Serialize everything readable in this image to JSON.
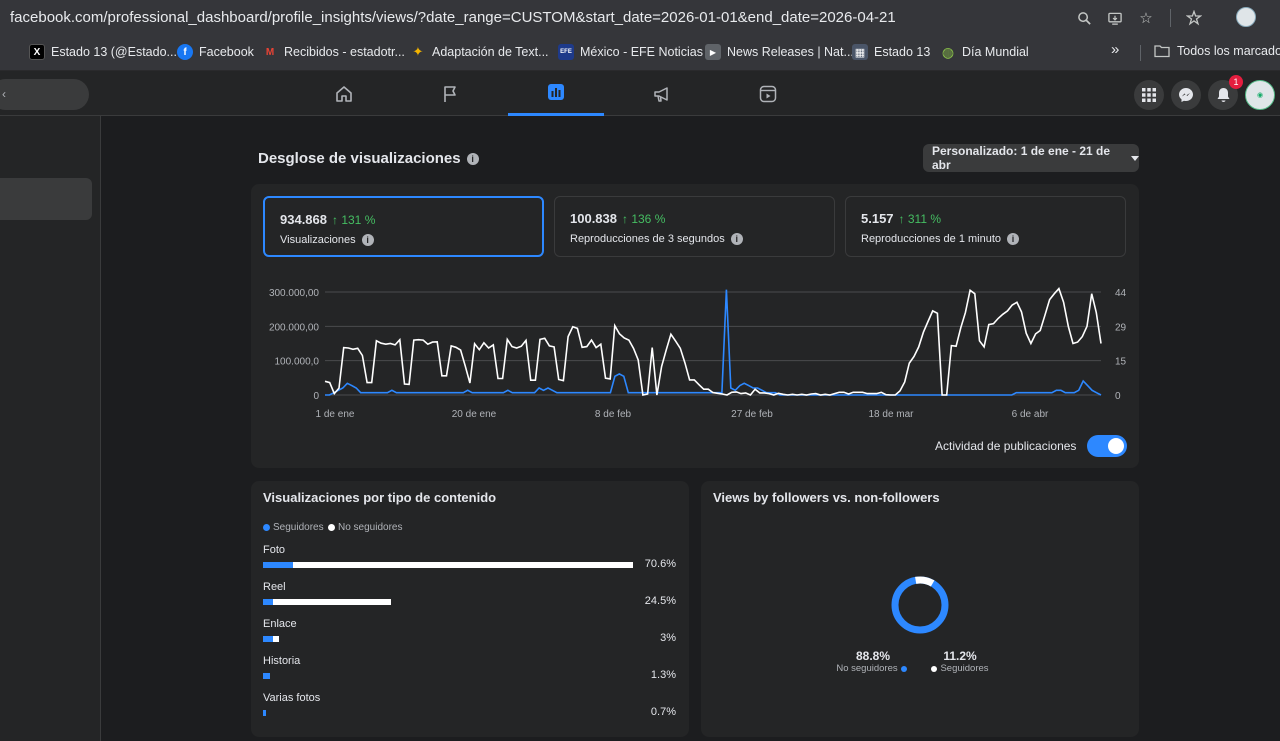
{
  "browser": {
    "url": "facebook.com/professional_dashboard/profile_insights/views/?date_range=CUSTOM&start_date=2026-01-01&end_date=2026-04-21",
    "bookmarks": [
      {
        "label": "Estado 13 (@Estado...",
        "icon": "x-icon",
        "color": "#000000",
        "glyph": "X"
      },
      {
        "label": "Facebook",
        "icon": "facebook-icon",
        "color": "#1877f2",
        "glyph": "f"
      },
      {
        "label": "Recibidos - estadotr...",
        "icon": "gmail-icon",
        "color": "#ea4335",
        "glyph": "M"
      },
      {
        "label": "Adaptación de Text...",
        "icon": "gemini-icon",
        "color": "#8ab4f8",
        "glyph": "✦"
      },
      {
        "label": "México - EFE Noticias",
        "icon": "efe-icon",
        "color": "#1e3a8a",
        "glyph": "EFE"
      },
      {
        "label": "News Releases | Nat...",
        "icon": "news-icon",
        "color": "#5f6368",
        "glyph": "▶"
      },
      {
        "label": "Estado 13",
        "icon": "estado13-icon",
        "color": "#4a5568",
        "glyph": "▦"
      },
      {
        "label": "Día Mundial",
        "icon": "globe-icon",
        "color": "#34a853",
        "glyph": "◍"
      }
    ],
    "overflow": "»",
    "all_bookmarks": "Todos los marcadores"
  },
  "fbnav": {
    "search_placeholder": "‹",
    "notifications_count": "1"
  },
  "breakdown": {
    "title": "Desglose de visualizaciones",
    "date_range": "Personalizado: 1 de ene - 21 de abr",
    "metrics": [
      {
        "value": "934.868",
        "change": "↑ 131 %",
        "label": "Visualizaciones"
      },
      {
        "value": "100.838",
        "change": "↑ 136 %",
        "label": "Reproducciones de 3 segundos"
      },
      {
        "value": "5.157",
        "change": "↑ 311 %",
        "label": "Reproducciones de 1 minuto"
      }
    ],
    "toggle_label": "Actividad de publicaciones"
  },
  "chart_data": {
    "type": "line",
    "left_axis_ticks": [
      "300.000,00",
      "200.000,00",
      "100.000,0",
      "0"
    ],
    "right_axis_ticks": [
      "44",
      "29",
      "15",
      "0"
    ],
    "x_tick_labels": [
      "1 de ene",
      "20 de ene",
      "8 de feb",
      "27 de feb",
      "18 de mar",
      "6 de abr"
    ],
    "colors": {
      "views": "#ffffff",
      "activity": "#2d88ff"
    },
    "views_series": [
      40000,
      36000,
      4000,
      20000,
      138000,
      137000,
      133000,
      136000,
      115000,
      36000,
      36000,
      158000,
      151000,
      148000,
      150000,
      146000,
      161000,
      32000,
      31000,
      160000,
      161000,
      160000,
      148000,
      154000,
      155000,
      56000,
      56000,
      143000,
      139000,
      131000,
      85000,
      35000,
      149000,
      132000,
      152000,
      137000,
      146000,
      48000,
      48000,
      162000,
      141000,
      137000,
      142000,
      159000,
      43000,
      43000,
      162000,
      165000,
      143000,
      140000,
      45000,
      42000,
      170000,
      199000,
      194000,
      139000,
      141000,
      160000,
      138000,
      148000,
      49000,
      47000,
      202000,
      178000,
      166000,
      160000,
      136000,
      102000,
      0,
      3000,
      138000,
      0,
      83000,
      132000,
      177000,
      157000,
      136000,
      93000,
      44000,
      44000,
      30000,
      17000,
      17000,
      7000,
      5000,
      3000,
      0,
      8000,
      9000,
      4000,
      6000,
      0,
      17000,
      6000,
      6000,
      4000,
      0,
      5000,
      2000,
      0,
      2000,
      0,
      2000,
      0,
      3000,
      4000,
      0,
      2000,
      0,
      4000,
      8000,
      8000,
      3000,
      8000,
      8000,
      8000,
      4000,
      4000,
      4000,
      8000,
      1000,
      0,
      0,
      12000,
      38000,
      93000,
      112000,
      140000,
      183000,
      214000,
      245000,
      238000,
      0,
      0,
      144000,
      142000,
      196000,
      240000,
      305000,
      295000,
      158000,
      140000,
      205000,
      208000,
      223000,
      235000,
      245000,
      262000,
      270000,
      242000,
      180000,
      150000,
      178000,
      188000,
      232000,
      278000,
      295000,
      310000,
      270000,
      200000,
      150000,
      154000,
      170000,
      200000,
      295000,
      240000,
      150000
    ],
    "activity_series": [
      0,
      0,
      1,
      2,
      3,
      5,
      4,
      3,
      1,
      1,
      1,
      1,
      1,
      1,
      1,
      2,
      1,
      1,
      1,
      1,
      1,
      1,
      1,
      1,
      1,
      1,
      1,
      1,
      1,
      1,
      1,
      1,
      2,
      1,
      1,
      1,
      1,
      1,
      1,
      1,
      1,
      2,
      1,
      1,
      1,
      1,
      1,
      1,
      3,
      2,
      3,
      2,
      1,
      1,
      1,
      1,
      1,
      1,
      1,
      1,
      1,
      1,
      1,
      1,
      1,
      8,
      9,
      8,
      1,
      1,
      1,
      1,
      1,
      1,
      1,
      1,
      1,
      1,
      1,
      1,
      1,
      1,
      1,
      1,
      1,
      1,
      1,
      1,
      1,
      1,
      45,
      3,
      2,
      4,
      5,
      4,
      3,
      3,
      2,
      1,
      1,
      1,
      0,
      0,
      0,
      0,
      0,
      0,
      0,
      0,
      0,
      0,
      0,
      0,
      0,
      0,
      0,
      0,
      0,
      0,
      0,
      0,
      0,
      0,
      0,
      0,
      0,
      0,
      0,
      0,
      0,
      0,
      0,
      0,
      0,
      0,
      0,
      0,
      0,
      0,
      0,
      0,
      0,
      0,
      0,
      0,
      0,
      0,
      0,
      0,
      0,
      0,
      0,
      0,
      0,
      1,
      1,
      1,
      1,
      1,
      1,
      1,
      1,
      1,
      2,
      2,
      1,
      1,
      1,
      2,
      6,
      4,
      2,
      1,
      0
    ]
  },
  "content_type": {
    "title": "Visualizaciones por tipo de contenido",
    "legend_followers": "Seguidores",
    "legend_nonfollowers": "No seguidores",
    "rows": [
      {
        "label": "Foto",
        "pct": "70.6%",
        "followers": 30,
        "nonfollowers": 340
      },
      {
        "label": "Reel",
        "pct": "24.5%",
        "followers": 10,
        "nonfollowers": 118
      },
      {
        "label": "Enlace",
        "pct": "3%",
        "followers": 10,
        "nonfollowers": 6
      },
      {
        "label": "Historia",
        "pct": "1.3%",
        "followers": 7,
        "nonfollowers": 0
      },
      {
        "label": "Varias fotos",
        "pct": "0.7%",
        "followers": 3,
        "nonfollowers": 0
      }
    ]
  },
  "followers_chart": {
    "title": "Views by followers vs. non-followers",
    "nonfollowers_pct": "88.8%",
    "nonfollowers_label": "No seguidores",
    "followers_pct": "11.2%",
    "followers_label": "Seguidores",
    "nonfollowers_value": 88.8,
    "followers_value": 11.2
  }
}
